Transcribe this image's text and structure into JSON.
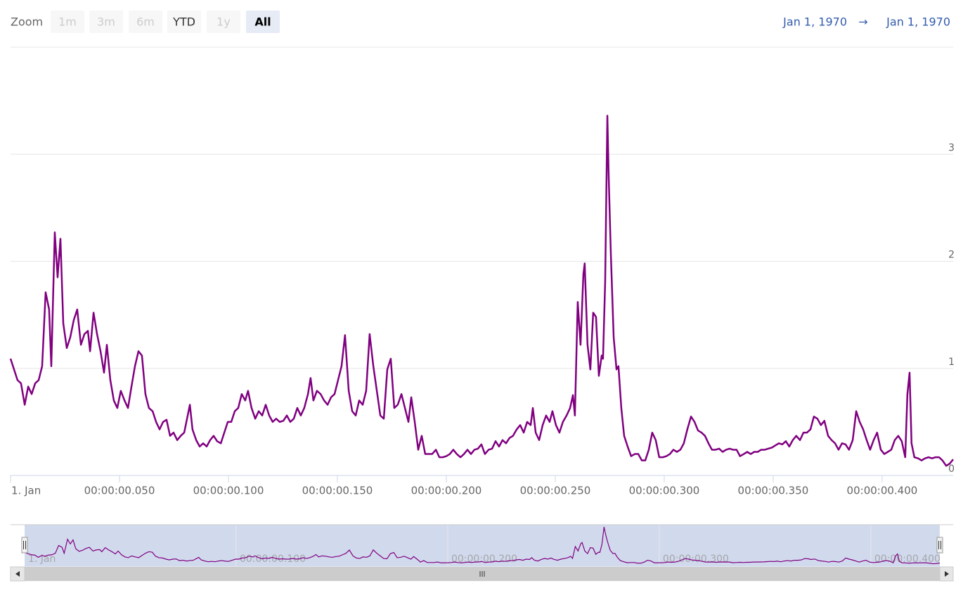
{
  "chart_data": {
    "type": "line",
    "range_selector": {
      "label": "Zoom",
      "buttons": [
        {
          "label": "1m",
          "state": "disabled"
        },
        {
          "label": "3m",
          "state": "disabled"
        },
        {
          "label": "6m",
          "state": "disabled"
        },
        {
          "label": "YTD",
          "state": "normal"
        },
        {
          "label": "1y",
          "state": "disabled"
        },
        {
          "label": "All",
          "state": "selected"
        }
      ]
    },
    "date_range": {
      "from": "Jan 1, 1970",
      "arrow": "→",
      "to": "Jan 1, 1970"
    },
    "color": "#800080",
    "grid": true,
    "xlim": [
      0,
      432.6
    ],
    "xticks": [
      {
        "value": 0,
        "label": "1. Jan"
      },
      {
        "value": 50,
        "label": "00:00:00.050"
      },
      {
        "value": 100,
        "label": "00:00:00.100"
      },
      {
        "value": 150,
        "label": "00:00:00.150"
      },
      {
        "value": 200,
        "label": "00:00:00.200"
      },
      {
        "value": 250,
        "label": "00:00:00.250"
      },
      {
        "value": 300,
        "label": "00:00:00.300"
      },
      {
        "value": 350,
        "label": "00:00:00.350"
      },
      {
        "value": 400,
        "label": "00:00:00.400"
      }
    ],
    "ylim": [
      0,
      4
    ],
    "yticks": [
      0,
      1,
      2,
      3
    ],
    "x": [
      0,
      1.6,
      3.2,
      4.8,
      6.5,
      8.1,
      9.7,
      11.3,
      12.9,
      14.5,
      16.1,
      17.7,
      18.7,
      20.3,
      21.6,
      22.9,
      24.2,
      25.8,
      27.4,
      29.0,
      30.6,
      32.3,
      33.9,
      35.5,
      36.5,
      38.1,
      39.7,
      41.3,
      42.9,
      44.2,
      45.8,
      47.4,
      49.0,
      50.6,
      52.3,
      53.9,
      55.5,
      57.1,
      58.7,
      60.3,
      61.9,
      63.5,
      65.2,
      66.8,
      68.4,
      70.0,
      71.6,
      73.2,
      74.8,
      76.5,
      78.1,
      79.7,
      81.3,
      82.3,
      83.5,
      85.2,
      86.8,
      88.4,
      90.0,
      91.6,
      93.2,
      94.8,
      96.5,
      98.1,
      99.7,
      101.3,
      102.9,
      104.5,
      106.1,
      107.7,
      109.0,
      110.6,
      112.3,
      113.9,
      115.5,
      117.1,
      118.7,
      120.3,
      121.9,
      123.5,
      125.2,
      126.8,
      128.4,
      130.0,
      131.6,
      133.2,
      134.8,
      136.5,
      137.7,
      139.0,
      140.6,
      142.3,
      143.9,
      145.5,
      147.1,
      148.7,
      150.3,
      151.9,
      153.5,
      155.2,
      156.8,
      158.4,
      160.0,
      161.6,
      163.2,
      164.8,
      166.5,
      168.1,
      169.7,
      171.3,
      172.9,
      174.5,
      176.1,
      177.7,
      179.4,
      181.0,
      182.6,
      183.9,
      185.5,
      187.1,
      188.7,
      190.3,
      191.9,
      193.5,
      195.2,
      196.8,
      198.4,
      200.0,
      201.6,
      203.2,
      204.8,
      206.5,
      208.1,
      209.7,
      211.3,
      212.9,
      214.5,
      216.1,
      217.7,
      219.4,
      221.0,
      222.6,
      224.2,
      225.8,
      227.4,
      229.0,
      230.6,
      232.3,
      233.9,
      235.5,
      237.1,
      238.7,
      239.7,
      241.0,
      242.6,
      244.2,
      245.8,
      247.4,
      248.7,
      250.3,
      251.9,
      253.5,
      255.2,
      256.8,
      258.1,
      259.0,
      260.3,
      261.6,
      262.9,
      263.5,
      264.8,
      266.1,
      267.4,
      268.7,
      270.0,
      271.3,
      271.9,
      272.9,
      273.9,
      274.5,
      275.5,
      276.8,
      278.1,
      279.0,
      280.3,
      281.6,
      283.2,
      284.8,
      286.5,
      288.1,
      289.7,
      291.3,
      292.9,
      294.5,
      296.1,
      297.7,
      299.4,
      301.0,
      302.6,
      304.2,
      305.8,
      307.4,
      309.0,
      310.6,
      312.3,
      313.9,
      315.5,
      317.1,
      318.7,
      320.3,
      321.9,
      323.5,
      325.2,
      326.8,
      328.4,
      330.0,
      331.6,
      333.2,
      334.8,
      336.5,
      338.1,
      339.7,
      341.3,
      342.9,
      344.5,
      346.1,
      347.7,
      349.4,
      351.0,
      352.6,
      354.2,
      355.8,
      357.4,
      359.0,
      360.6,
      362.3,
      363.9,
      365.5,
      367.1,
      368.7,
      370.3,
      371.9,
      373.5,
      375.2,
      376.8,
      378.4,
      380.0,
      381.6,
      383.2,
      384.8,
      386.5,
      388.1,
      389.7,
      391.3,
      392.9,
      394.5,
      396.1,
      397.7,
      399.4,
      401.0,
      402.6,
      404.2,
      405.8,
      407.4,
      409.0,
      410.6,
      411.6,
      412.6,
      413.5,
      414.8,
      416.5,
      418.1,
      419.7,
      421.3,
      422.9,
      424.5,
      426.1,
      427.7,
      429.4,
      431.0,
      432.6
    ],
    "values": [
      1.09,
      0.99,
      0.89,
      0.86,
      0.66,
      0.83,
      0.76,
      0.86,
      0.89,
      1.02,
      1.71,
      1.55,
      1.02,
      2.27,
      1.85,
      2.21,
      1.42,
      1.19,
      1.29,
      1.45,
      1.55,
      1.22,
      1.32,
      1.35,
      1.16,
      1.52,
      1.32,
      1.16,
      0.96,
      1.22,
      0.89,
      0.7,
      0.63,
      0.79,
      0.7,
      0.63,
      0.83,
      1.02,
      1.16,
      1.12,
      0.76,
      0.63,
      0.6,
      0.5,
      0.43,
      0.5,
      0.52,
      0.37,
      0.4,
      0.33,
      0.37,
      0.4,
      0.56,
      0.66,
      0.43,
      0.33,
      0.27,
      0.3,
      0.27,
      0.33,
      0.37,
      0.32,
      0.3,
      0.4,
      0.5,
      0.5,
      0.6,
      0.63,
      0.76,
      0.7,
      0.79,
      0.63,
      0.53,
      0.6,
      0.56,
      0.66,
      0.56,
      0.5,
      0.53,
      0.5,
      0.51,
      0.56,
      0.5,
      0.53,
      0.63,
      0.56,
      0.63,
      0.76,
      0.91,
      0.7,
      0.79,
      0.76,
      0.7,
      0.66,
      0.73,
      0.76,
      0.89,
      1.02,
      1.31,
      0.79,
      0.6,
      0.56,
      0.7,
      0.66,
      0.79,
      1.32,
      1.02,
      0.79,
      0.56,
      0.53,
      0.99,
      1.09,
      0.63,
      0.66,
      0.76,
      0.63,
      0.5,
      0.73,
      0.5,
      0.24,
      0.37,
      0.2,
      0.2,
      0.2,
      0.24,
      0.17,
      0.17,
      0.18,
      0.2,
      0.24,
      0.2,
      0.17,
      0.2,
      0.24,
      0.2,
      0.24,
      0.25,
      0.29,
      0.2,
      0.24,
      0.25,
      0.32,
      0.27,
      0.33,
      0.3,
      0.35,
      0.37,
      0.43,
      0.47,
      0.4,
      0.5,
      0.47,
      0.63,
      0.4,
      0.33,
      0.47,
      0.56,
      0.5,
      0.6,
      0.47,
      0.4,
      0.5,
      0.56,
      0.63,
      0.75,
      0.56,
      1.62,
      1.22,
      1.88,
      1.98,
      1.22,
      0.99,
      1.52,
      1.48,
      0.93,
      1.12,
      1.09,
      1.81,
      3.36,
      2.8,
      2.07,
      1.29,
      0.99,
      1.02,
      0.63,
      0.37,
      0.27,
      0.18,
      0.2,
      0.2,
      0.14,
      0.14,
      0.24,
      0.4,
      0.33,
      0.17,
      0.17,
      0.18,
      0.2,
      0.24,
      0.22,
      0.24,
      0.3,
      0.43,
      0.55,
      0.5,
      0.42,
      0.4,
      0.37,
      0.3,
      0.24,
      0.24,
      0.25,
      0.22,
      0.24,
      0.25,
      0.24,
      0.24,
      0.18,
      0.2,
      0.22,
      0.2,
      0.22,
      0.22,
      0.24,
      0.24,
      0.25,
      0.26,
      0.28,
      0.3,
      0.29,
      0.32,
      0.27,
      0.33,
      0.37,
      0.33,
      0.4,
      0.4,
      0.43,
      0.55,
      0.53,
      0.47,
      0.51,
      0.37,
      0.33,
      0.3,
      0.24,
      0.3,
      0.29,
      0.24,
      0.33,
      0.6,
      0.5,
      0.43,
      0.33,
      0.24,
      0.33,
      0.4,
      0.24,
      0.2,
      0.22,
      0.24,
      0.33,
      0.37,
      0.32,
      0.17,
      0.76,
      0.96,
      0.3,
      0.17,
      0.16,
      0.14,
      0.16,
      0.17,
      0.16,
      0.17,
      0.17,
      0.14,
      0.09,
      0.11,
      0.15
    ],
    "navigator": {
      "xlim": [
        0,
        432.6
      ],
      "ylim": [
        0,
        3.5
      ],
      "xticks": [
        {
          "value": 0,
          "label": "1. Jan"
        },
        {
          "value": 100,
          "label": "00:00:00.100"
        },
        {
          "value": 200,
          "label": "00:00:00.200"
        },
        {
          "value": 300,
          "label": "00:00:00.300"
        },
        {
          "value": 400,
          "label": "00:00:00.400"
        }
      ]
    }
  }
}
